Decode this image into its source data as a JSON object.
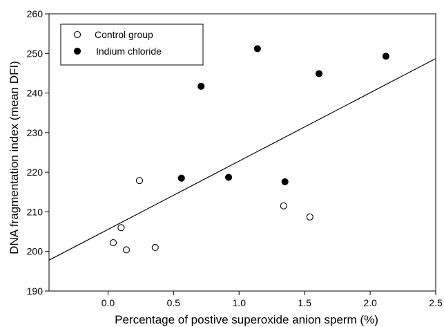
{
  "chart_data": {
    "type": "scatter",
    "title": "",
    "xlabel": "Percentage of postive  superoxide anion sperm (%)",
    "ylabel": "DNA fragmentation index (mean DFI)",
    "xlim": [
      -0.45,
      2.5
    ],
    "ylim": [
      190,
      260
    ],
    "x_ticks": [
      0.0,
      0.5,
      1.0,
      1.5,
      2.0,
      2.5
    ],
    "x_tick_labels": [
      "0.0",
      "0.5",
      "1.0",
      "1.5",
      "2.0",
      "2.5"
    ],
    "y_ticks": [
      190,
      200,
      210,
      220,
      230,
      240,
      250,
      260
    ],
    "y_tick_labels": [
      "190",
      "200",
      "210",
      "220",
      "230",
      "240",
      "250",
      "260"
    ],
    "grid": false,
    "legend_position": "top-left",
    "series": [
      {
        "name": "Control group",
        "marker": "open-circle",
        "color": "#000000",
        "points": [
          {
            "x": 0.04,
            "y": 202.2
          },
          {
            "x": 0.1,
            "y": 206.0
          },
          {
            "x": 0.14,
            "y": 200.4
          },
          {
            "x": 0.24,
            "y": 217.9
          },
          {
            "x": 0.36,
            "y": 201.0
          },
          {
            "x": 1.34,
            "y": 211.5
          },
          {
            "x": 1.54,
            "y": 208.7
          }
        ]
      },
      {
        "name": "Indium chloride",
        "marker": "filled-circle",
        "color": "#000000",
        "points": [
          {
            "x": 0.56,
            "y": 218.5
          },
          {
            "x": 0.71,
            "y": 241.7
          },
          {
            "x": 0.92,
            "y": 218.7
          },
          {
            "x": 1.14,
            "y": 251.2
          },
          {
            "x": 1.35,
            "y": 217.6
          },
          {
            "x": 1.61,
            "y": 244.9
          },
          {
            "x": 2.12,
            "y": 249.3
          }
        ]
      }
    ],
    "regression_line": {
      "x": [
        -0.45,
        2.5
      ],
      "y": [
        197.8,
        248.7
      ]
    }
  }
}
